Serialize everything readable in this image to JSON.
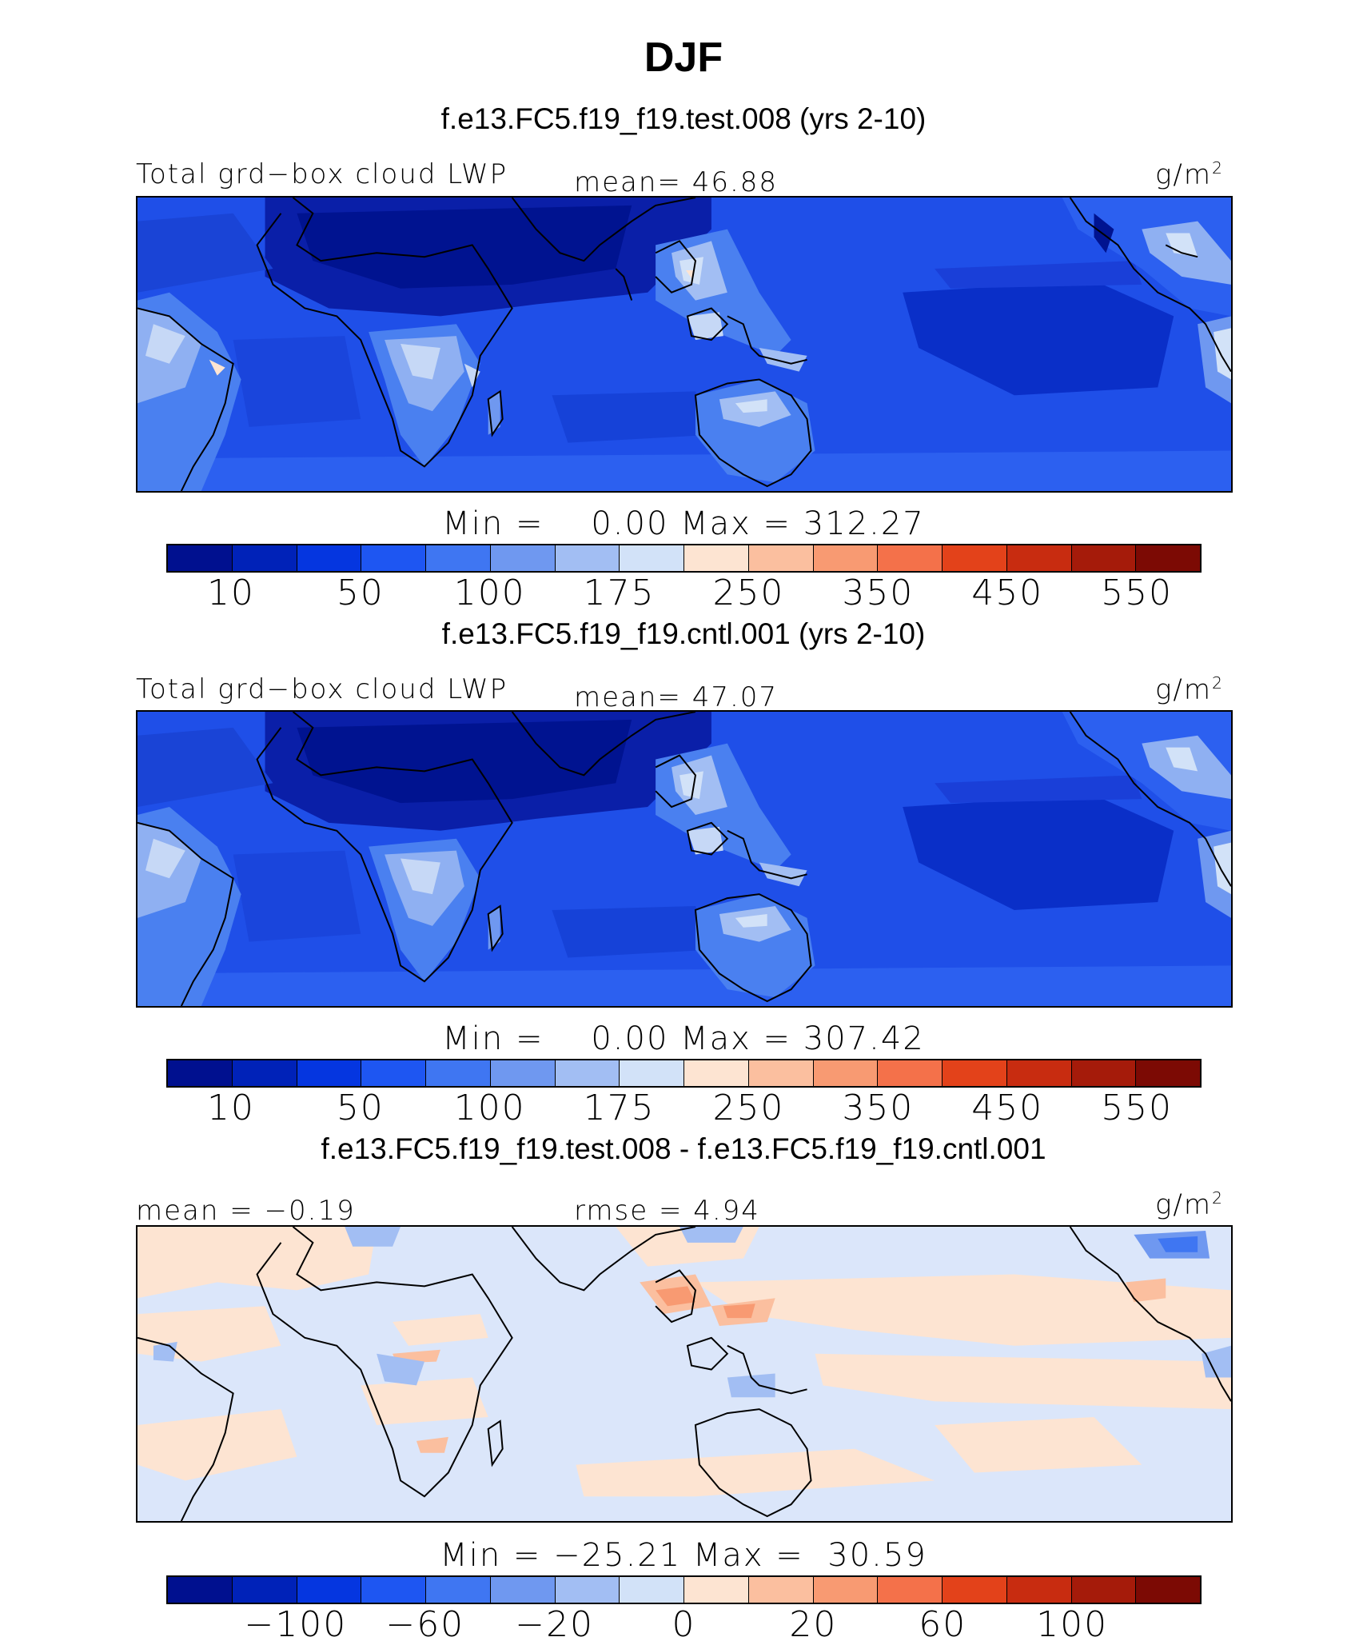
{
  "title": "DJF",
  "panels": [
    {
      "case": "f.e13.FC5.f19_f19.test.008 (yrs 2-10)",
      "left_label": "Total grd−box cloud LWP",
      "center_label": "mean=  46.88",
      "units": "g/m",
      "units_sup": "2",
      "minmax": "Min =    0.00 Max = 312.27",
      "ticks": [
        "10",
        "50",
        "100",
        "175",
        "250",
        "350",
        "450",
        "550"
      ]
    },
    {
      "case": "f.e13.FC5.f19_f19.cntl.001 (yrs 2-10)",
      "left_label": "Total grd−box cloud LWP",
      "center_label": "mean=  47.07",
      "units": "g/m",
      "units_sup": "2",
      "minmax": "Min =    0.00 Max = 307.42",
      "ticks": [
        "10",
        "50",
        "100",
        "175",
        "250",
        "350",
        "450",
        "550"
      ]
    },
    {
      "case": "f.e13.FC5.f19_f19.test.008 - f.e13.FC5.f19_f19.cntl.001",
      "left_label": "mean =  −0.19",
      "center_label": "rmse =   4.94",
      "units": "g/m",
      "units_sup": "2",
      "minmax": "Min = −25.21 Max =  30.59",
      "ticks": [
        "−100",
        "−60",
        "−20",
        "0",
        "20",
        "60",
        "100"
      ]
    }
  ],
  "colorbar_colors": [
    "#00108f",
    "#0022b8",
    "#0536e0",
    "#1e56f2",
    "#3f76f2",
    "#6f98f0",
    "#a2bef3",
    "#d2e2f8",
    "#fde4d2",
    "#fbbf9f",
    "#f89a72",
    "#f4714a",
    "#e3421a",
    "#c82c10",
    "#a51b0a",
    "#7c0a04"
  ],
  "colors": {
    "ocean_field": "#1f4fe8",
    "land_outline": "#000000",
    "diff_background": "#dbe6fa"
  }
}
